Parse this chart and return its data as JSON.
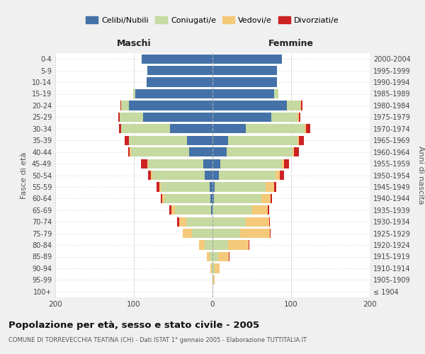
{
  "age_groups": [
    "100+",
    "95-99",
    "90-94",
    "85-89",
    "80-84",
    "75-79",
    "70-74",
    "65-69",
    "60-64",
    "55-59",
    "50-54",
    "45-49",
    "40-44",
    "35-39",
    "30-34",
    "25-29",
    "20-24",
    "15-19",
    "10-14",
    "5-9",
    "0-4"
  ],
  "birth_years": [
    "≤ 1904",
    "1905-1909",
    "1910-1914",
    "1915-1919",
    "1920-1924",
    "1925-1929",
    "1930-1934",
    "1935-1939",
    "1940-1944",
    "1945-1949",
    "1950-1954",
    "1955-1959",
    "1960-1964",
    "1965-1969",
    "1970-1974",
    "1975-1979",
    "1980-1984",
    "1985-1989",
    "1990-1994",
    "1995-1999",
    "2000-2004"
  ],
  "colors": {
    "celibi": "#4472a8",
    "coniugati": "#c5d9a0",
    "vedovi": "#f5c97a",
    "divorziati": "#cc2222"
  },
  "maschi": {
    "celibi": [
      0,
      0,
      0,
      0,
      0,
      0,
      0,
      2,
      3,
      4,
      10,
      12,
      30,
      32,
      54,
      88,
      106,
      98,
      84,
      83,
      90
    ],
    "coniugati": [
      0,
      0,
      1,
      4,
      10,
      26,
      33,
      46,
      58,
      62,
      67,
      70,
      74,
      74,
      62,
      30,
      10,
      3,
      0,
      0,
      0
    ],
    "vedovi": [
      0,
      0,
      2,
      3,
      7,
      12,
      9,
      4,
      3,
      2,
      1,
      1,
      1,
      0,
      0,
      0,
      0,
      0,
      0,
      0,
      0
    ],
    "divorziati": [
      0,
      0,
      0,
      0,
      0,
      0,
      3,
      3,
      2,
      3,
      4,
      8,
      2,
      6,
      3,
      2,
      1,
      0,
      0,
      0,
      0
    ]
  },
  "femmine": {
    "celibi": [
      0,
      0,
      0,
      0,
      0,
      0,
      0,
      0,
      2,
      3,
      8,
      10,
      18,
      20,
      42,
      75,
      95,
      78,
      82,
      82,
      88
    ],
    "coniugati": [
      0,
      1,
      3,
      7,
      20,
      35,
      42,
      50,
      60,
      65,
      72,
      78,
      84,
      88,
      75,
      33,
      17,
      6,
      0,
      0,
      0
    ],
    "vedovi": [
      0,
      2,
      6,
      14,
      26,
      38,
      30,
      20,
      12,
      10,
      6,
      3,
      2,
      2,
      2,
      2,
      1,
      0,
      0,
      0,
      0
    ],
    "divorziati": [
      0,
      0,
      0,
      1,
      1,
      1,
      1,
      2,
      2,
      3,
      5,
      6,
      6,
      6,
      5,
      2,
      1,
      0,
      0,
      0,
      0
    ]
  },
  "xlim": 200,
  "title": "Popolazione per età, sesso e stato civile - 2005",
  "subtitle": "COMUNE DI TORREVECCHIA TEATINA (CH) - Dati ISTAT 1° gennaio 2005 - Elaborazione TUTTITALIA.IT",
  "ylabel_left": "Fasce di età",
  "ylabel_right": "Anni di nascita",
  "xlabel_maschi": "Maschi",
  "xlabel_femmine": "Femmine",
  "legend_labels": [
    "Celibi/Nubili",
    "Coniugati/e",
    "Vedovi/e",
    "Divorziati/e"
  ],
  "bg_color": "#f0f0f0",
  "plot_bg": "#ffffff"
}
